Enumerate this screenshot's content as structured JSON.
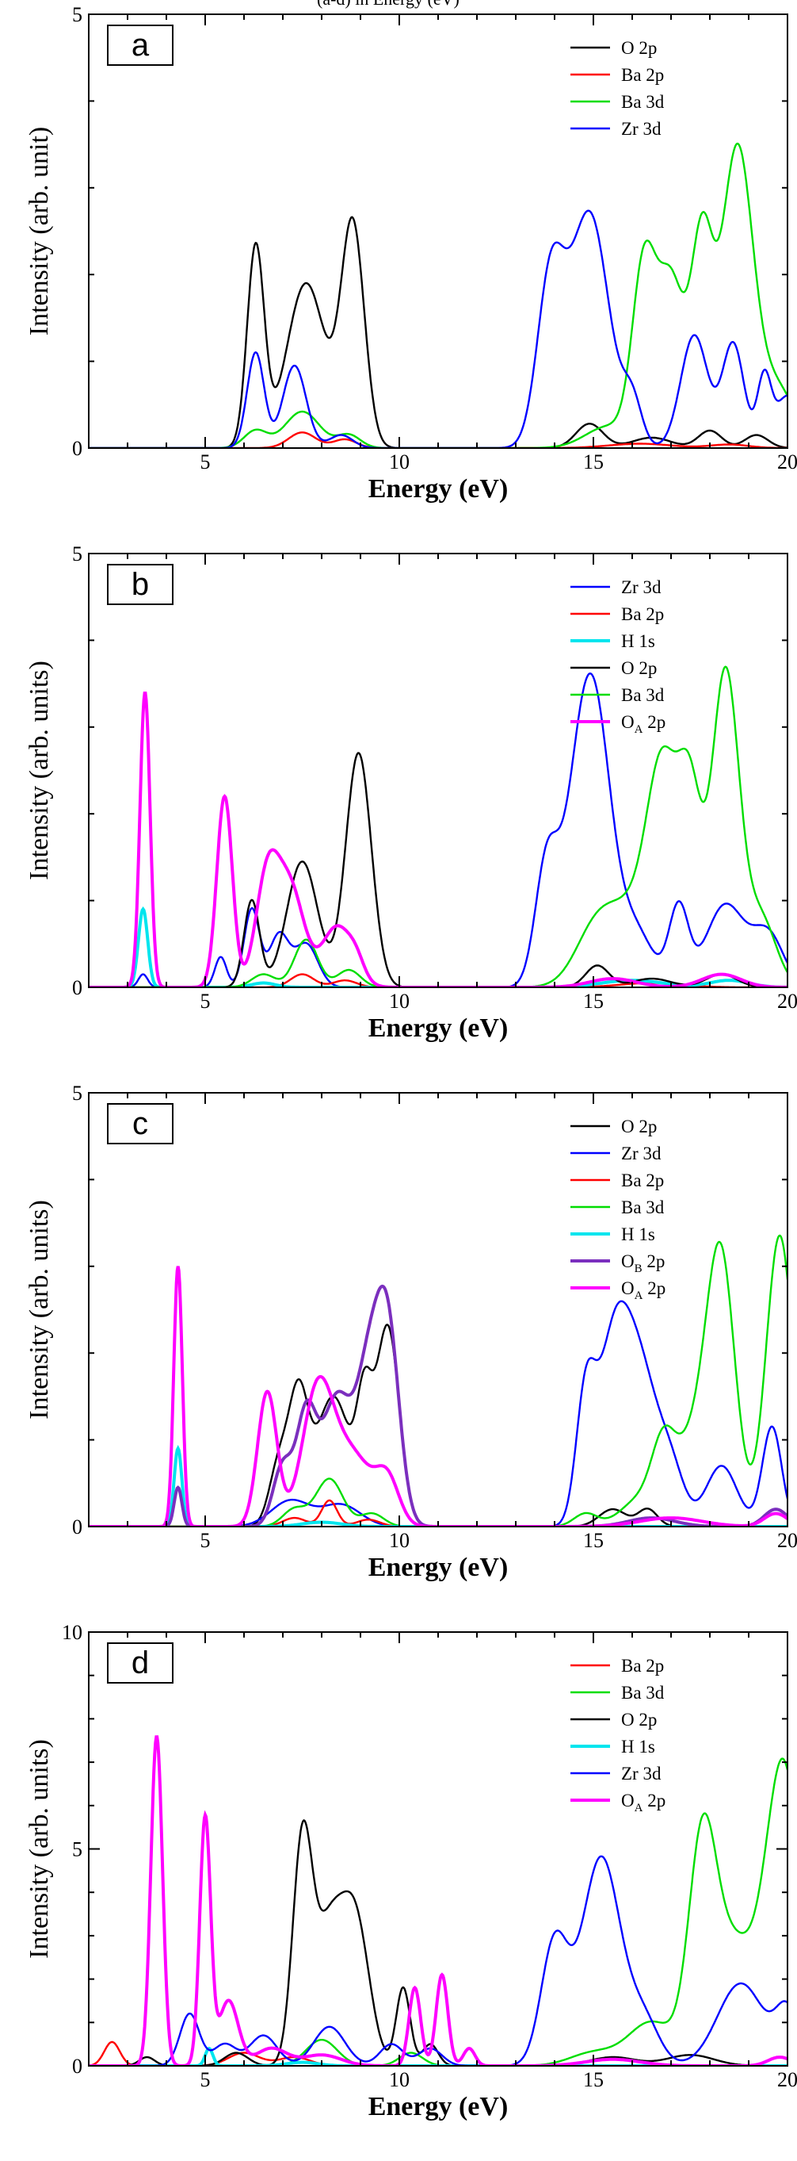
{
  "header_fragment": "(a-d) in Energy (eV)",
  "chart_data": [
    {
      "type": "line",
      "panel_label": "a",
      "xlabel": "Energy (eV)",
      "ylabel": "Intensity (arb. unit)",
      "xlim": [
        2,
        20
      ],
      "ylim": [
        0,
        5
      ],
      "xticks": [
        "5",
        "10",
        "15",
        "20"
      ],
      "yticks": [
        "0",
        "5"
      ],
      "legend_position": "top-right",
      "series": [
        {
          "name": "O 2p",
          "sub": "",
          "color": "#000000",
          "peaks": [
            [
              6.3,
              2.3,
              0.22
            ],
            [
              7.6,
              1.9,
              0.5
            ],
            [
              8.8,
              2.55,
              0.3
            ],
            [
              14.9,
              0.28,
              0.35
            ],
            [
              16.5,
              0.12,
              0.5
            ],
            [
              18.0,
              0.2,
              0.3
            ],
            [
              19.2,
              0.15,
              0.3
            ]
          ]
        },
        {
          "name": "Ba 2p",
          "sub": "",
          "color": "#ff0000",
          "peaks": [
            [
              7.5,
              0.18,
              0.35
            ],
            [
              8.6,
              0.1,
              0.3
            ],
            [
              16.2,
              0.05,
              0.8
            ],
            [
              18.5,
              0.04,
              0.5
            ]
          ]
        },
        {
          "name": "Ba 3d",
          "sub": "",
          "color": "#00dd00",
          "peaks": [
            [
              6.3,
              0.2,
              0.3
            ],
            [
              7.5,
              0.42,
              0.45
            ],
            [
              8.7,
              0.15,
              0.3
            ],
            [
              15.4,
              0.25,
              0.6
            ],
            [
              16.3,
              2.0,
              0.3
            ],
            [
              17.0,
              1.9,
              0.35
            ],
            [
              17.8,
              2.3,
              0.28
            ],
            [
              18.7,
              3.4,
              0.4
            ],
            [
              19.7,
              0.7,
              0.5
            ]
          ]
        },
        {
          "name": "Zr 3d",
          "sub": "",
          "color": "#0000ff",
          "peaks": [
            [
              6.3,
              1.1,
              0.22
            ],
            [
              7.3,
              0.95,
              0.3
            ],
            [
              8.5,
              0.15,
              0.3
            ],
            [
              13.9,
              1.9,
              0.35
            ],
            [
              14.9,
              2.7,
              0.5
            ],
            [
              16.0,
              0.5,
              0.25
            ],
            [
              17.6,
              1.3,
              0.35
            ],
            [
              18.6,
              1.2,
              0.28
            ],
            [
              19.4,
              0.8,
              0.18
            ],
            [
              20.0,
              0.6,
              0.3
            ]
          ]
        }
      ]
    },
    {
      "type": "line",
      "panel_label": "b",
      "xlabel": "Energy (eV)",
      "ylabel": "Intensity (arb. units)",
      "xlim": [
        2,
        20
      ],
      "ylim": [
        0,
        5
      ],
      "xticks": [
        "5",
        "10",
        "15",
        "20"
      ],
      "yticks": [
        "0",
        "5"
      ],
      "legend_position": "top-right",
      "series": [
        {
          "name": "Zr 3d",
          "sub": "",
          "color": "#0000ff",
          "peaks": [
            [
              3.4,
              0.15,
              0.12
            ],
            [
              5.4,
              0.35,
              0.15
            ],
            [
              6.2,
              0.9,
              0.2
            ],
            [
              6.9,
              0.6,
              0.25
            ],
            [
              7.6,
              0.5,
              0.3
            ],
            [
              13.8,
              1.4,
              0.3
            ],
            [
              14.6,
              1.9,
              0.4
            ],
            [
              15.1,
              2.4,
              0.4
            ],
            [
              16.0,
              0.7,
              0.5
            ],
            [
              17.2,
              0.9,
              0.25
            ],
            [
              18.4,
              0.95,
              0.5
            ],
            [
              19.5,
              0.6,
              0.4
            ]
          ]
        },
        {
          "name": "Ba 2p",
          "sub": "",
          "color": "#ff0000",
          "peaks": [
            [
              7.5,
              0.15,
              0.3
            ],
            [
              8.6,
              0.08,
              0.3
            ],
            [
              16.5,
              0.05,
              0.8
            ]
          ]
        },
        {
          "name": "H 1s",
          "sub": "",
          "color": "#00e5ee",
          "peaks": [
            [
              3.4,
              0.9,
              0.12
            ],
            [
              6.5,
              0.05,
              0.3
            ],
            [
              16.0,
              0.08,
              0.8
            ],
            [
              18.5,
              0.08,
              0.5
            ]
          ]
        },
        {
          "name": "O 2p",
          "sub": "",
          "color": "#000000",
          "peaks": [
            [
              6.2,
              1.0,
              0.2
            ],
            [
              7.5,
              1.45,
              0.4
            ],
            [
              8.95,
              2.7,
              0.33
            ],
            [
              15.1,
              0.25,
              0.3
            ],
            [
              16.5,
              0.1,
              0.5
            ],
            [
              18.3,
              0.15,
              0.4
            ]
          ]
        },
        {
          "name": "Ba 3d",
          "sub": "",
          "color": "#00dd00",
          "peaks": [
            [
              6.5,
              0.15,
              0.3
            ],
            [
              7.6,
              0.55,
              0.3
            ],
            [
              8.7,
              0.2,
              0.3
            ],
            [
              15.0,
              0.4,
              0.5
            ],
            [
              16.0,
              0.9,
              0.8
            ],
            [
              16.8,
              2.1,
              0.4
            ],
            [
              17.5,
              1.9,
              0.3
            ],
            [
              18.4,
              3.6,
              0.35
            ],
            [
              19.3,
              0.8,
              0.4
            ]
          ]
        },
        {
          "name": "O",
          "sub": "A",
          "suffix": " 2p",
          "color": "#ff00ff",
          "peaks": [
            [
              3.45,
              3.4,
              0.13
            ],
            [
              5.5,
              2.2,
              0.2
            ],
            [
              6.6,
              1.25,
              0.3
            ],
            [
              7.2,
              1.1,
              0.35
            ],
            [
              8.4,
              0.7,
              0.4
            ],
            [
              8.9,
              0.15,
              0.2
            ],
            [
              15.5,
              0.1,
              0.6
            ],
            [
              18.3,
              0.15,
              0.5
            ]
          ]
        }
      ]
    },
    {
      "type": "line",
      "panel_label": "c",
      "xlabel": "Energy (eV)",
      "ylabel": "Intensity (arb. units)",
      "xlim": [
        2,
        20
      ],
      "ylim": [
        0,
        5
      ],
      "xticks": [
        "5",
        "10",
        "15",
        "20"
      ],
      "yticks": [
        "0",
        "5"
      ],
      "legend_position": "top-right",
      "series": [
        {
          "name": "O 2p",
          "sub": "",
          "color": "#000000",
          "peaks": [
            [
              6.9,
              0.7,
              0.25
            ],
            [
              7.4,
              1.4,
              0.25
            ],
            [
              8.3,
              1.5,
              0.45
            ],
            [
              9.1,
              1.2,
              0.2
            ],
            [
              9.7,
              2.3,
              0.3
            ],
            [
              15.5,
              0.2,
              0.35
            ],
            [
              16.4,
              0.2,
              0.25
            ]
          ]
        },
        {
          "name": "Zr 3d",
          "sub": "",
          "color": "#0000ff",
          "peaks": [
            [
              7.2,
              0.3,
              0.5
            ],
            [
              8.5,
              0.25,
              0.5
            ],
            [
              14.8,
              1.4,
              0.25
            ],
            [
              15.5,
              1.9,
              0.4
            ],
            [
              16.2,
              1.7,
              0.45
            ],
            [
              17.0,
              0.6,
              0.35
            ],
            [
              18.3,
              0.7,
              0.4
            ],
            [
              19.6,
              1.15,
              0.25
            ]
          ]
        },
        {
          "name": "Ba 2p",
          "sub": "",
          "color": "#ff0000",
          "peaks": [
            [
              7.3,
              0.1,
              0.3
            ],
            [
              8.2,
              0.3,
              0.2
            ],
            [
              9.2,
              0.08,
              0.3
            ]
          ]
        },
        {
          "name": "Ba 3d",
          "sub": "",
          "color": "#00dd00",
          "peaks": [
            [
              7.3,
              0.2,
              0.3
            ],
            [
              8.2,
              0.55,
              0.35
            ],
            [
              9.3,
              0.15,
              0.3
            ],
            [
              14.8,
              0.15,
              0.3
            ],
            [
              16.2,
              0.3,
              0.5
            ],
            [
              16.8,
              0.7,
              0.3
            ],
            [
              17.8,
              1.2,
              0.6
            ],
            [
              18.3,
              2.4,
              0.35
            ],
            [
              19.8,
              3.35,
              0.35
            ]
          ]
        },
        {
          "name": "H 1s",
          "sub": "",
          "color": "#00e5ee",
          "peaks": [
            [
              4.3,
              0.9,
              0.1
            ],
            [
              8.0,
              0.05,
              0.5
            ]
          ]
        },
        {
          "name": "O",
          "sub": "B",
          "suffix": " 2p",
          "color": "#7b2fbe",
          "peaks": [
            [
              4.3,
              0.45,
              0.1
            ],
            [
              7.0,
              0.7,
              0.25
            ],
            [
              7.6,
              1.2,
              0.25
            ],
            [
              8.4,
              1.5,
              0.4
            ],
            [
              9.2,
              1.5,
              0.3
            ],
            [
              9.7,
              2.25,
              0.3
            ],
            [
              16.5,
              0.1,
              0.6
            ],
            [
              19.7,
              0.2,
              0.3
            ]
          ]
        },
        {
          "name": "O",
          "sub": "A",
          "suffix": " 2p",
          "color": "#ff00ff",
          "peaks": [
            [
              4.3,
              3.0,
              0.11
            ],
            [
              6.6,
              1.55,
              0.25
            ],
            [
              7.9,
              1.55,
              0.4
            ],
            [
              8.8,
              0.8,
              0.5
            ],
            [
              9.7,
              0.5,
              0.3
            ],
            [
              17.0,
              0.1,
              0.8
            ],
            [
              19.7,
              0.15,
              0.3
            ]
          ]
        }
      ]
    },
    {
      "type": "line",
      "panel_label": "d",
      "xlabel": "Energy (eV)",
      "ylabel": "Intensity (arb. units)",
      "xlim": [
        2,
        20
      ],
      "ylim": [
        0,
        10
      ],
      "xticks": [
        "5",
        "10",
        "15",
        "20"
      ],
      "yticks": [
        "0",
        "5",
        "10"
      ],
      "legend_position": "top-right",
      "series": [
        {
          "name": "Ba 2p",
          "sub": "",
          "color": "#ff0000",
          "peaks": [
            [
              2.6,
              0.55,
              0.2
            ],
            [
              6.0,
              0.3,
              0.4
            ],
            [
              7.3,
              0.2,
              0.4
            ]
          ]
        },
        {
          "name": "Ba 3d",
          "sub": "",
          "color": "#00dd00",
          "peaks": [
            [
              8.0,
              0.6,
              0.4
            ],
            [
              10.3,
              0.3,
              0.3
            ],
            [
              15.0,
              0.3,
              0.6
            ],
            [
              16.5,
              1.0,
              0.6
            ],
            [
              17.8,
              4.5,
              0.35
            ],
            [
              18.6,
              2.8,
              0.6
            ],
            [
              19.9,
              6.8,
              0.45
            ]
          ]
        },
        {
          "name": "O 2p",
          "sub": "",
          "color": "#000000",
          "peaks": [
            [
              3.5,
              0.2,
              0.2
            ],
            [
              5.8,
              0.3,
              0.3
            ],
            [
              7.5,
              4.9,
              0.25
            ],
            [
              8.2,
              3.2,
              0.4
            ],
            [
              8.9,
              3.0,
              0.35
            ],
            [
              10.1,
              1.8,
              0.18
            ],
            [
              10.8,
              0.5,
              0.2
            ],
            [
              15.5,
              0.2,
              0.6
            ],
            [
              17.5,
              0.25,
              0.6
            ]
          ]
        },
        {
          "name": "H 1s",
          "sub": "",
          "color": "#00e5ee",
          "peaks": [
            [
              5.1,
              0.4,
              0.1
            ],
            [
              7.5,
              0.08,
              0.4
            ]
          ]
        },
        {
          "name": "Zr 3d",
          "sub": "",
          "color": "#0000ff",
          "peaks": [
            [
              4.6,
              1.2,
              0.25
            ],
            [
              5.5,
              0.5,
              0.3
            ],
            [
              6.5,
              0.7,
              0.35
            ],
            [
              8.2,
              0.9,
              0.4
            ],
            [
              9.8,
              0.5,
              0.3
            ],
            [
              10.8,
              0.4,
              0.3
            ],
            [
              14.0,
              2.8,
              0.35
            ],
            [
              15.2,
              4.8,
              0.5
            ],
            [
              16.3,
              1.0,
              0.4
            ],
            [
              18.8,
              1.9,
              0.6
            ],
            [
              20.0,
              1.2,
              0.3
            ]
          ]
        },
        {
          "name": "O",
          "sub": "A",
          "suffix": " 2p",
          "color": "#ff00ff",
          "peaks": [
            [
              3.75,
              7.6,
              0.15
            ],
            [
              5.0,
              5.7,
              0.14
            ],
            [
              5.6,
              1.5,
              0.25
            ],
            [
              6.7,
              0.4,
              0.4
            ],
            [
              8.0,
              0.25,
              0.5
            ],
            [
              10.4,
              1.8,
              0.15
            ],
            [
              11.1,
              2.1,
              0.15
            ],
            [
              11.8,
              0.4,
              0.15
            ],
            [
              15.5,
              0.15,
              0.7
            ],
            [
              19.8,
              0.2,
              0.3
            ]
          ]
        }
      ]
    }
  ]
}
